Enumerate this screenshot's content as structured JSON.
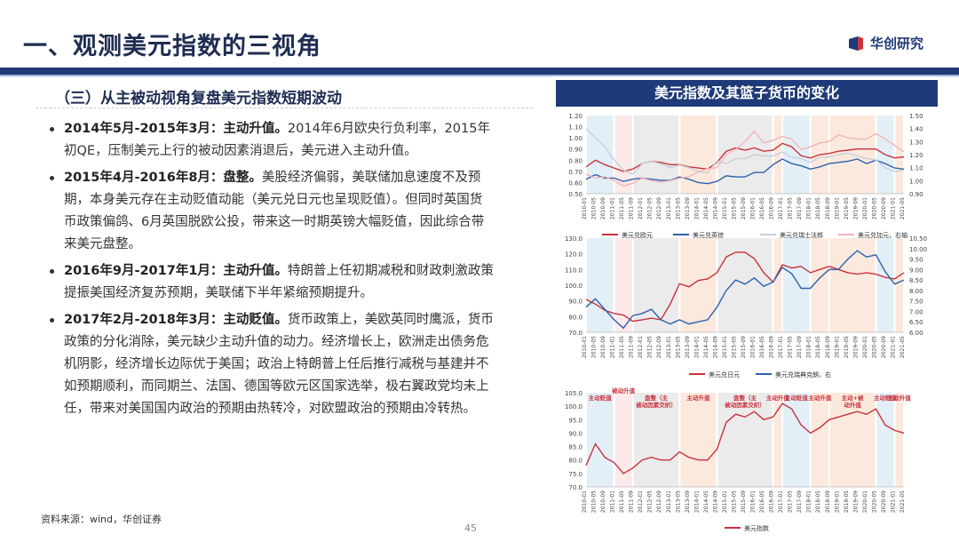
{
  "page": {
    "title": "一、观测美元指数的三视角",
    "brand": "华创研究",
    "subheading": "（三）从主被动视角复盘美元指数短期波动",
    "source": "资料来源：wind，华创证券",
    "page_number": "45"
  },
  "bullets": [
    {
      "head": "2014年5月-2015年3月：主动升值。",
      "body": "2014年6月欧央行负利率，2015年初QE，压制美元上行的被动因素消退后，美元进入主动升值。"
    },
    {
      "head": "2015年4月-2016年8月：盘整。",
      "body": "美股经济偏弱，美联储加息速度不及预期，本身美元存在主动贬值动能（美元兑日元也呈现贬值）。但同时英国货币政策偏鸽、6月英国脱欧公投，带来这一时期英镑大幅贬值，因此综合带来美元盘整。"
    },
    {
      "head": "2016年9月-2017年1月：主动升值。",
      "body": "特朗普上任初期减税和财政刺激政策提振美国经济复苏预期，美联储下半年紧缩预期提升。"
    },
    {
      "head": "2017年2月-2018年3月：主动贬值。",
      "body": "货币政策上，美欧英同时鹰派，货币政策的分化消除，美元缺少主动升值的动力。经济增长上，欧洲走出债务危机阴影，经济增长边际优于美国；政治上特朗普上任后推行减税与基建并不如预期顺利，而同期兰、法国、德国等欧元区国家选举，极右翼政党均未上任，带来对美国国内政治的预期由热转冷，对欧盟政治的预期由冷转热。"
    }
  ],
  "chart_data": [
    {
      "type": "line",
      "title": "美元指数及其篮子货币的变化",
      "x_tick_labels": [
        "2010-01",
        "2010-05",
        "2010-09",
        "2011-01",
        "2011-05",
        "2011-09",
        "2012-01",
        "2012-05",
        "2012-09",
        "2013-01",
        "2013-05",
        "2013-09",
        "2014-01",
        "2014-05",
        "2014-09",
        "2015-01",
        "2015-05",
        "2015-09",
        "2016-01",
        "2016-05",
        "2016-09",
        "2017-01",
        "2017-05",
        "2017-09",
        "2018-01",
        "2018-05",
        "2018-09",
        "2019-01",
        "2019-05",
        "2019-09",
        "2020-01",
        "2020-05",
        "2020-09",
        "2021-01",
        "2021-05"
      ],
      "ylim_left": [
        0.5,
        1.2
      ],
      "yticks_left": [
        "1.20",
        "1.10",
        "1.00",
        "0.90",
        "0.80",
        "0.70",
        "0.60",
        "0.50"
      ],
      "ylim_right": [
        0.9,
        1.5
      ],
      "yticks_right": [
        "1.50",
        "1.40",
        "1.30",
        "1.20",
        "1.10",
        "1.00",
        "0.90"
      ],
      "series": [
        {
          "name": "美元兑欧元",
          "axis": "left",
          "color": "#c8323c",
          "values": [
            0.74,
            0.8,
            0.76,
            0.73,
            0.7,
            0.72,
            0.77,
            0.79,
            0.78,
            0.76,
            0.76,
            0.74,
            0.73,
            0.72,
            0.78,
            0.88,
            0.91,
            0.89,
            0.91,
            0.88,
            0.89,
            0.95,
            0.92,
            0.84,
            0.82,
            0.85,
            0.86,
            0.88,
            0.89,
            0.9,
            0.9,
            0.9,
            0.85,
            0.82,
            0.83
          ]
        },
        {
          "name": "美元兑英镑",
          "axis": "left",
          "color": "#2d62ad",
          "values": [
            0.63,
            0.67,
            0.64,
            0.64,
            0.61,
            0.63,
            0.64,
            0.63,
            0.62,
            0.62,
            0.65,
            0.63,
            0.6,
            0.59,
            0.61,
            0.66,
            0.65,
            0.65,
            0.69,
            0.69,
            0.76,
            0.81,
            0.77,
            0.75,
            0.72,
            0.74,
            0.77,
            0.78,
            0.79,
            0.81,
            0.77,
            0.8,
            0.77,
            0.73,
            0.72
          ]
        },
        {
          "name": "美元兑瑞士法郎",
          "axis": "right",
          "color": "#c7cfdb",
          "values": [
            1.4,
            1.33,
            1.26,
            1.16,
            1.08,
            1.05,
            1.13,
            1.15,
            1.13,
            1.1,
            1.12,
            1.1,
            1.07,
            1.06,
            1.15,
            1.13,
            1.17,
            1.17,
            1.2,
            1.19,
            1.19,
            1.22,
            1.18,
            1.17,
            1.14,
            1.18,
            1.18,
            1.2,
            1.21,
            1.19,
            1.17,
            1.16,
            1.1,
            1.07,
            1.08
          ]
        },
        {
          "name": "美元兑加元，右轴",
          "axis": "right",
          "color": "#f3b5b7",
          "values": [
            1.05,
            1.02,
            1.03,
            1.0,
            0.96,
            0.98,
            1.02,
            1.0,
            0.99,
            1.0,
            1.02,
            1.03,
            1.07,
            1.09,
            1.1,
            1.2,
            1.24,
            1.3,
            1.38,
            1.29,
            1.31,
            1.34,
            1.32,
            1.24,
            1.26,
            1.29,
            1.3,
            1.35,
            1.33,
            1.32,
            1.32,
            1.36,
            1.32,
            1.27,
            1.22
          ]
        }
      ]
    },
    {
      "type": "line",
      "ylim_left": [
        70,
        130
      ],
      "yticks_left": [
        "130.0",
        "120.0",
        "110.0",
        "100.0",
        "90.0",
        "80.0",
        "70.0"
      ],
      "ylim_right": [
        6.0,
        10.5
      ],
      "yticks_right": [
        "10.50",
        "10.00",
        "9.50",
        "9.00",
        "8.50",
        "8.00",
        "7.50",
        "7.00",
        "6.50",
        "6.00"
      ],
      "series": [
        {
          "name": "美元兑日元",
          "axis": "left",
          "color": "#c8323c",
          "values": [
            91,
            88,
            84,
            82,
            81,
            77,
            78,
            79,
            78,
            88,
            101,
            99,
            103,
            104,
            108,
            118,
            121,
            121,
            117,
            108,
            102,
            113,
            111,
            112,
            108,
            110,
            112,
            110,
            108,
            107,
            108,
            107,
            105,
            104,
            108
          ]
        },
        {
          "name": "美元兑瑞典克朗，右",
          "axis": "right",
          "color": "#2d62ad",
          "values": [
            7.2,
            7.6,
            7.1,
            6.6,
            6.2,
            6.8,
            6.9,
            7.1,
            6.6,
            6.4,
            6.6,
            6.4,
            6.5,
            6.6,
            7.2,
            8.0,
            8.5,
            8.3,
            8.6,
            8.2,
            8.4,
            9.1,
            8.8,
            8.1,
            8.1,
            8.6,
            9.0,
            9.0,
            9.5,
            9.9,
            9.6,
            9.7,
            8.9,
            8.3,
            8.5
          ]
        }
      ]
    },
    {
      "type": "line",
      "ylim_left": [
        70,
        105
      ],
      "yticks_left": [
        "105.0",
        "100.0",
        "95.0",
        "90.0",
        "85.0",
        "80.0",
        "75.0",
        "70.0"
      ],
      "legend": [
        "美元指数"
      ],
      "series": [
        {
          "name": "美元指数",
          "axis": "left",
          "color": "#c8323c",
          "values": [
            78,
            86,
            81,
            79,
            75,
            77,
            80,
            81,
            80,
            80,
            83,
            81,
            80,
            80,
            84,
            94,
            97,
            96,
            98,
            95,
            96,
            101,
            99,
            93,
            90,
            92,
            95,
            96,
            97,
            98,
            97,
            99,
            93,
            91,
            90
          ]
        }
      ],
      "phase_labels": [
        {
          "text": "主动贬值",
          "from": 0,
          "to": 3,
          "shade": "#dcebf5"
        },
        {
          "text": "被动升值",
          "from": 3,
          "to": 5,
          "shade": "#fbe3e3"
        },
        {
          "text": "盘整（主被动因素交织）",
          "from": 5,
          "to": 10,
          "shade": "#e6e6e6"
        },
        {
          "text": "主动升值",
          "from": 10,
          "to": 14,
          "shade": "#fbe3d5"
        },
        {
          "text": "盘整（主被动因素交织）",
          "from": 14,
          "to": 20,
          "shade": "#e6e6e6"
        },
        {
          "text": "主动升值",
          "from": 20,
          "to": 21,
          "shade": "#fbe3d5"
        },
        {
          "text": "主动贬值",
          "from": 21,
          "to": 24,
          "shade": "#dcebf5"
        },
        {
          "text": "主动升值",
          "from": 24,
          "to": 26,
          "shade": "#fbe3d5"
        },
        {
          "text": "主动+被动升值",
          "from": 26,
          "to": 31,
          "shade": "#fbe3d5"
        },
        {
          "text": "主动贬值",
          "from": 31,
          "to": 33,
          "shade": "#dcebf5"
        },
        {
          "text": "主动升值",
          "from": 33,
          "to": 34,
          "shade": "#fbe3d5"
        }
      ]
    }
  ]
}
